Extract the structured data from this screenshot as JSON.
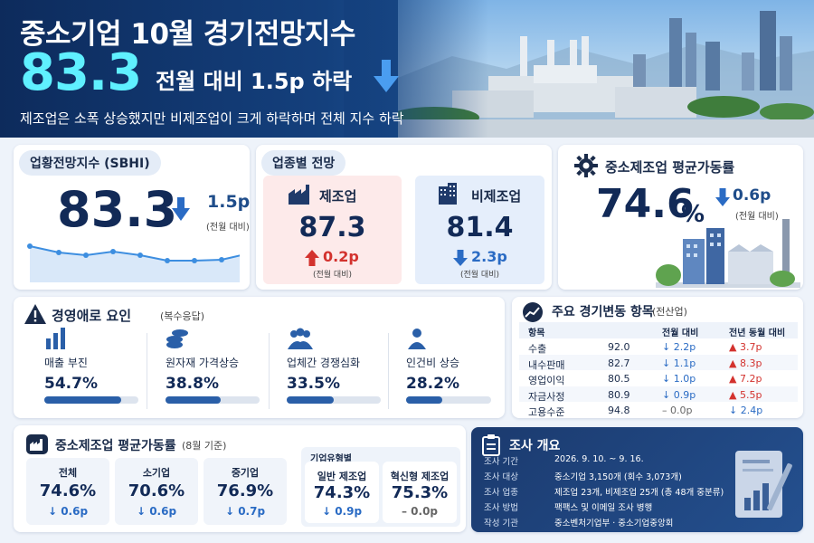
{
  "header": {
    "title": "중소기업 10월 경기전망지수",
    "main_value": "83.3",
    "change": "전월 대비 1.5p 하락",
    "subtitle": "제조업은 소폭 상승했지만 비제조업이 크게 하락하며 전체 지수 하락"
  },
  "sbhi": {
    "label": "업황전망지수 (SBHI)",
    "value": "83.3",
    "change": "1.5p",
    "change_caption": "(전월 대비)",
    "trend_direction": "down"
  },
  "sector": {
    "label": "업종별 전망",
    "manufacturing": {
      "name": "제조업",
      "value": "87.3",
      "change": "0.2p",
      "direction": "up",
      "caption": "(전월 대비)"
    },
    "non_manufacturing": {
      "name": "비제조업",
      "value": "81.4",
      "change": "2.3p",
      "direction": "down",
      "caption": "(전월 대비)"
    }
  },
  "utilization_top": {
    "label": "중소제조업 평균가동률",
    "value": "74.6",
    "unit": "%",
    "change": "0.6p",
    "change_caption": "(전월 대비)"
  },
  "difficulties": {
    "label": "경영애로 요인",
    "note": "(복수응답)",
    "items": [
      {
        "name": "매출 부진",
        "value": "54.7%",
        "share": 0.547,
        "icon": "bar-chart-icon"
      },
      {
        "name": "원자재 가격상승",
        "value": "38.8%",
        "share": 0.388,
        "icon": "coins-icon"
      },
      {
        "name": "업체간 경쟁심화",
        "value": "33.5%",
        "share": 0.335,
        "icon": "people-icon"
      },
      {
        "name": "인건비 상승",
        "value": "28.2%",
        "share": 0.282,
        "icon": "person-icon"
      }
    ]
  },
  "indicators": {
    "label": "주요 경기변동 항목",
    "note": "(전산업)",
    "headers": [
      "항목",
      "전월 대비",
      "전년 동월 대비"
    ],
    "rows": [
      {
        "name": "수출",
        "value": "92.0",
        "mom": "2.2p",
        "mom_dir": "down",
        "yoy": "3.7p",
        "yoy_dir": "up"
      },
      {
        "name": "내수판매",
        "value": "82.7",
        "mom": "1.1p",
        "mom_dir": "down",
        "yoy": "8.3p",
        "yoy_dir": "up"
      },
      {
        "name": "영업이익",
        "value": "80.5",
        "mom": "1.0p",
        "mom_dir": "down",
        "yoy": "7.2p",
        "yoy_dir": "up"
      },
      {
        "name": "자금사정",
        "value": "80.9",
        "mom": "0.9p",
        "mom_dir": "down",
        "yoy": "5.5p",
        "yoy_dir": "up"
      },
      {
        "name": "고용수준",
        "value": "94.8",
        "mom": "0.0p",
        "mom_dir": "flat",
        "yoy": "2.4p",
        "yoy_dir": "down"
      }
    ]
  },
  "utilization_detail": {
    "label": "중소제조업 평균가동률",
    "note": "(8월 기준)",
    "group_label": "기업유형별",
    "items": [
      {
        "name": "전체",
        "value": "74.6%",
        "change": "0.6p",
        "direction": "down"
      },
      {
        "name": "소기업",
        "value": "70.6%",
        "change": "0.6p",
        "direction": "down"
      },
      {
        "name": "중기업",
        "value": "76.9%",
        "change": "0.7p",
        "direction": "down"
      },
      {
        "name": "일반 제조업",
        "value": "74.3%",
        "change": "0.9p",
        "direction": "down"
      },
      {
        "name": "혁신형 제조업",
        "value": "75.3%",
        "change": "0.0p",
        "direction": "flat"
      }
    ]
  },
  "survey": {
    "label": "조사 개요",
    "rows": [
      {
        "k": "조사 기간",
        "v": "2026. 9. 10. ~ 9. 16."
      },
      {
        "k": "조사 대상",
        "v": "중소기업 3,150개 (회수 3,073개)"
      },
      {
        "k": "조사 업종",
        "v": "제조업 23개, 비제조업 25개 (총 48개 중분류)"
      },
      {
        "k": "조사 방법",
        "v": "팩팩스 및 이메일 조사 병행"
      },
      {
        "k": "작성 기관",
        "v": "중소벤처기업부 · 중소기업중앙회"
      }
    ]
  },
  "colors": {
    "navy": "#122a57",
    "down": "#2a6bc4",
    "up": "#d3322e",
    "accent": "#5ff0ff"
  }
}
